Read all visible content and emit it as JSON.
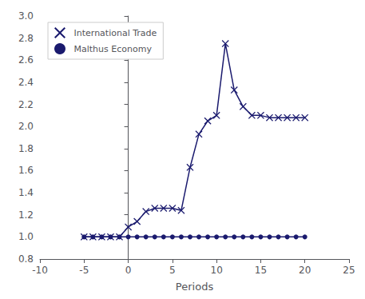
{
  "chart_data": {
    "type": "line",
    "xlabel": "Periods",
    "x": [
      -5,
      -4,
      -3,
      -2,
      -1,
      0,
      1,
      2,
      3,
      4,
      5,
      6,
      7,
      8,
      9,
      10,
      11,
      12,
      13,
      14,
      15,
      16,
      17,
      18,
      19,
      20
    ],
    "series": [
      {
        "name": "International Trade",
        "color": "#1a1a6e",
        "marker": "x",
        "values": [
          1.0,
          1.0,
          1.0,
          1.0,
          1.0,
          1.09,
          1.14,
          1.23,
          1.26,
          1.26,
          1.26,
          1.24,
          1.63,
          1.93,
          2.05,
          2.1,
          2.75,
          2.33,
          2.18,
          2.1,
          2.1,
          2.08,
          2.08,
          2.08,
          2.08,
          2.08
        ]
      },
      {
        "name": "Malthus Economy",
        "color": "#1a1a6e",
        "marker": "o",
        "values": [
          1.0,
          1.0,
          1.0,
          1.0,
          1.0,
          1.0,
          1.0,
          1.0,
          1.0,
          1.0,
          1.0,
          1.0,
          1.0,
          1.0,
          1.0,
          1.0,
          1.0,
          1.0,
          1.0,
          1.0,
          1.0,
          1.0,
          1.0,
          1.0,
          1.0,
          1.0
        ]
      }
    ],
    "xlim": [
      -10,
      25
    ],
    "xticks": [
      -10,
      -5,
      0,
      5,
      10,
      15,
      20,
      25
    ],
    "ylim": [
      0.8,
      3.0
    ],
    "yticks": [
      0.8,
      {
        "value": 1.0,
        "label": "1.0"
      },
      1.2,
      1.4,
      1.6,
      1.8,
      {
        "value": 2.0,
        "label": "2.0"
      },
      2.2,
      2.4,
      2.6,
      2.8,
      {
        "value": 3.0,
        "label": "3.0"
      }
    ],
    "grid": false,
    "legend": "upper left"
  }
}
